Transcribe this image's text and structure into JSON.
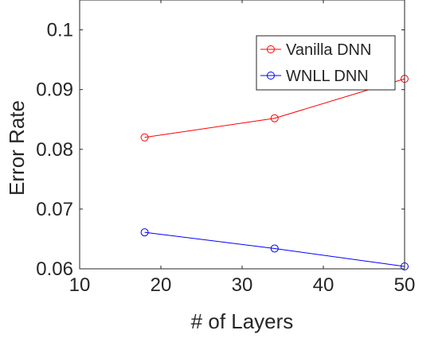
{
  "chart_data": {
    "type": "line",
    "title": "",
    "xlabel": "# of Layers",
    "ylabel": "Error Rate",
    "xlim": [
      10,
      50
    ],
    "ylim": [
      0.06,
      0.105
    ],
    "xticks": [
      10,
      20,
      30,
      40,
      50
    ],
    "xtick_labels": [
      "10",
      "20",
      "30",
      "40",
      "50"
    ],
    "yticks": [
      0.06,
      0.07,
      0.08,
      0.09,
      0.1
    ],
    "ytick_labels": [
      "0.06",
      "0.07",
      "0.08",
      "0.09",
      "0.1"
    ],
    "grid": false,
    "legend_position": "top-right",
    "x": [
      18,
      34,
      50
    ],
    "series": [
      {
        "name": "Vanilla DNN",
        "color": "#ff0000",
        "marker": "circle",
        "values": [
          0.082,
          0.0852,
          0.0918
        ]
      },
      {
        "name": "WNLL DNN",
        "color": "#0000ff",
        "marker": "circle",
        "values": [
          0.0661,
          0.0634,
          0.0604
        ]
      }
    ]
  }
}
